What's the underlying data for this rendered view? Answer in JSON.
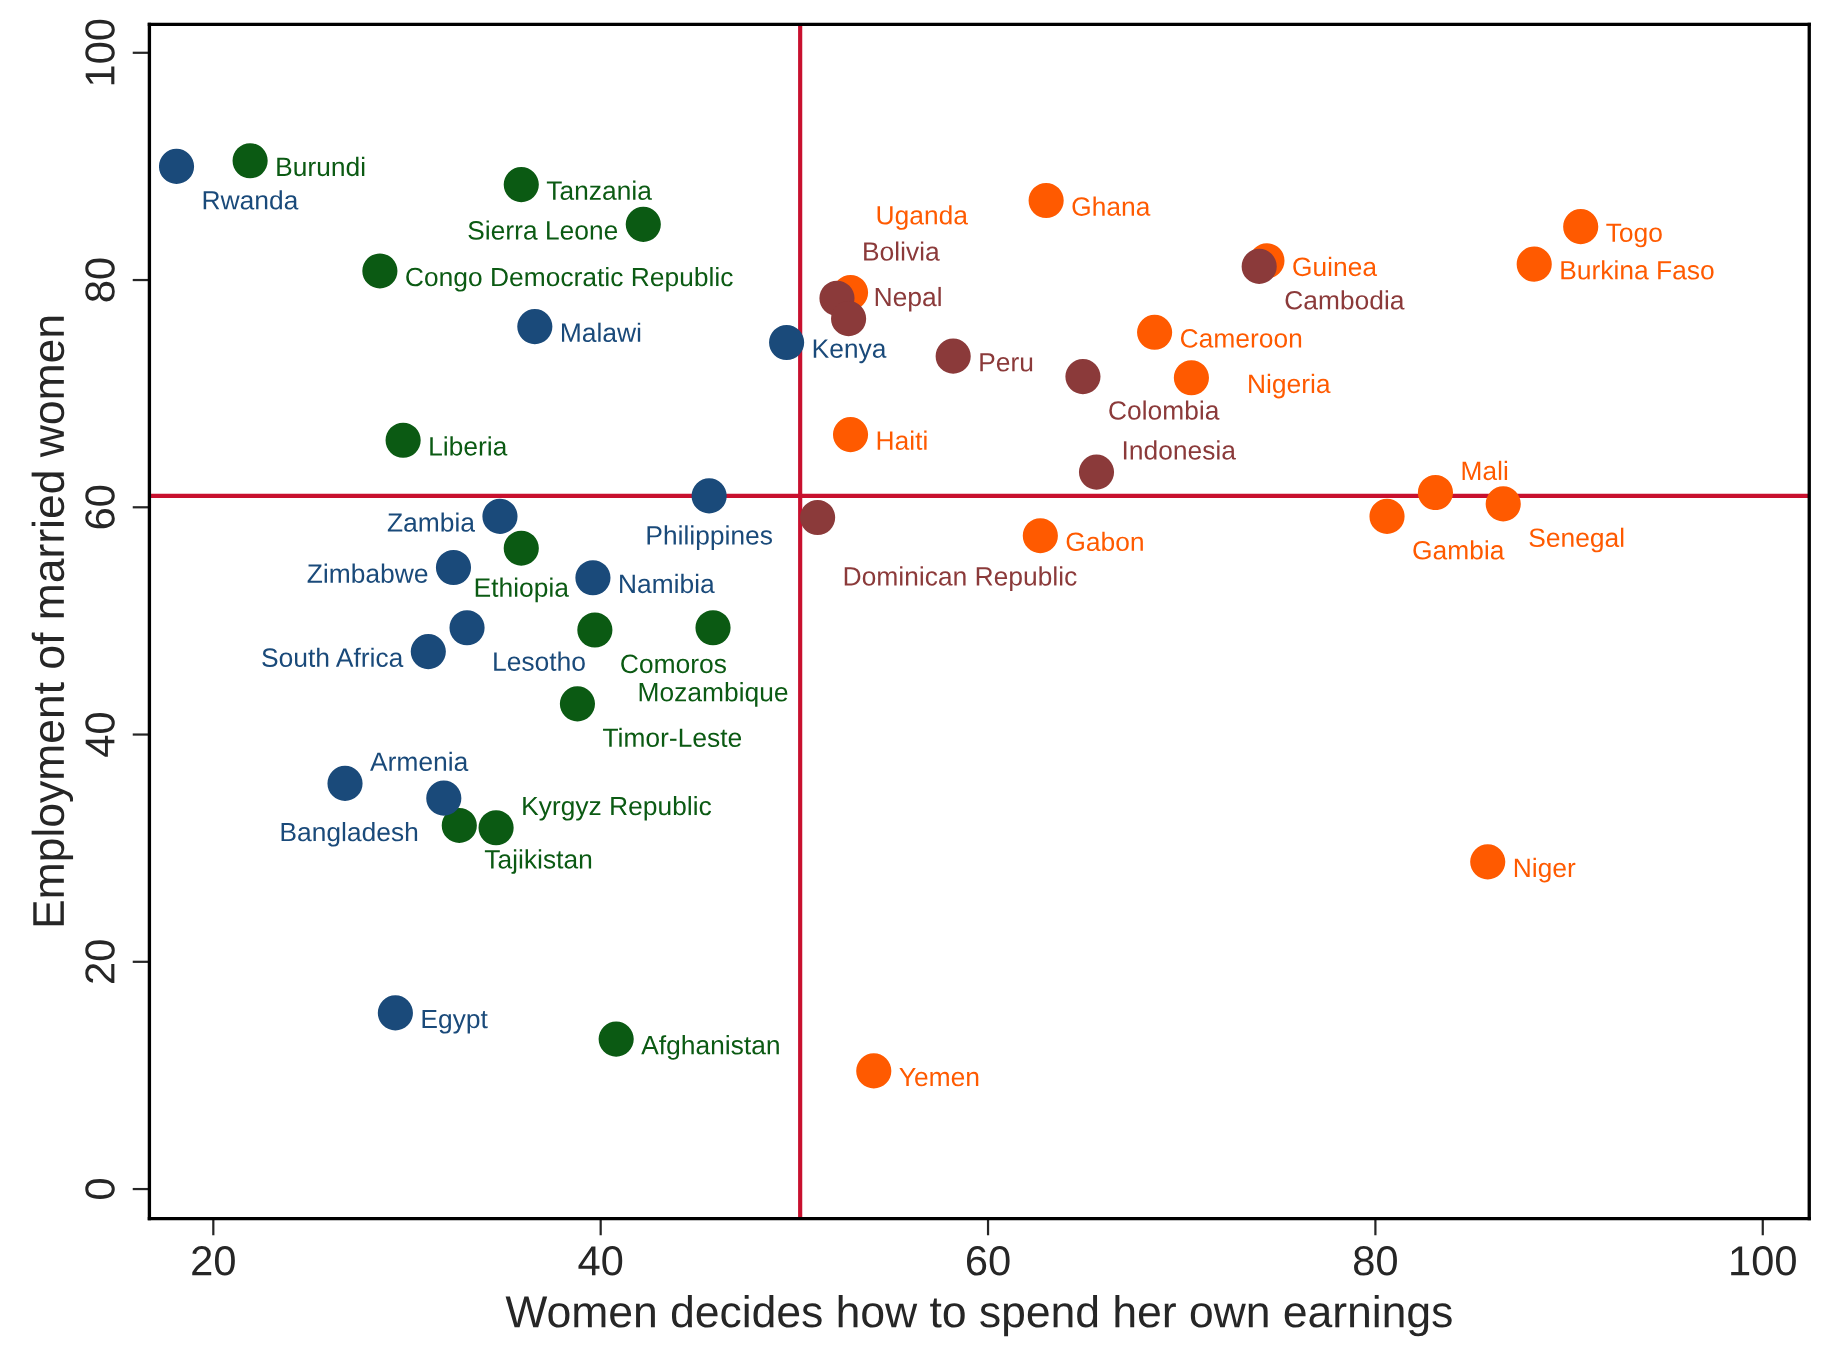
{
  "chart_data": {
    "type": "scatter",
    "xlabel": "Women decides how to spend her own earnings",
    "ylabel": "Employment of married women",
    "xlim": [
      16.7,
      102.4
    ],
    "ylim": [
      -2.6,
      102.5
    ],
    "xticks": [
      20,
      40,
      60,
      80,
      100
    ],
    "yticks": [
      0,
      20,
      40,
      60,
      80,
      100
    ],
    "grid": false,
    "legend": false,
    "marker": "circle",
    "series": [
      {
        "color": "#1a4a7a",
        "x": [
          18.1,
          49.6,
          36.6,
          45.6,
          34.8,
          32.4,
          39.6,
          33.1,
          31.1,
          26.8,
          31.9,
          29.4
        ],
        "values": [
          90.0,
          74.5,
          75.9,
          61.0,
          59.2,
          54.7,
          53.8,
          49.4,
          47.3,
          35.7,
          34.4,
          15.5
        ]
      },
      {
        "color": "#0b5a13",
        "x": [
          21.9,
          35.9,
          42.2,
          28.6,
          29.8,
          35.9,
          39.7,
          45.8,
          38.8,
          32.7,
          34.6,
          40.8
        ],
        "values": [
          90.5,
          88.4,
          84.9,
          80.8,
          65.9,
          56.4,
          49.2,
          49.4,
          42.7,
          32.0,
          31.8,
          13.2
        ]
      },
      {
        "color": "#8b3a3a",
        "x": [
          52.2,
          52.8,
          58.2,
          64.9,
          65.6,
          51.2,
          74.0
        ],
        "values": [
          78.4,
          76.6,
          73.3,
          71.5,
          63.1,
          59.1,
          81.2
        ]
      },
      {
        "color": "#ff5a00",
        "x": [
          52.9,
          63.0,
          74.4,
          90.6,
          88.2,
          68.6,
          70.5,
          52.9,
          62.7,
          80.6,
          83.1,
          86.6,
          85.8,
          54.1
        ],
        "values": [
          78.9,
          87.0,
          81.7,
          84.7,
          81.4,
          75.4,
          71.4,
          66.4,
          57.5,
          59.2,
          61.3,
          60.3,
          28.8,
          10.4
        ]
      }
    ],
    "ref_lines": [
      {
        "axis": "x",
        "value": 50.3,
        "color": "#c8102e"
      },
      {
        "axis": "y",
        "value": 61.0,
        "color": "#c8102e"
      }
    ],
    "annotations": [
      {
        "text": "Rwanda",
        "x": 18.1,
        "y": 90.0
      },
      {
        "text": "Kenya",
        "x": 49.6,
        "y": 74.5
      },
      {
        "text": "Malawi",
        "x": 36.6,
        "y": 75.9
      },
      {
        "text": "Philippines",
        "x": 45.6,
        "y": 61.0
      },
      {
        "text": "Zambia",
        "x": 34.8,
        "y": 59.2
      },
      {
        "text": "Zimbabwe",
        "x": 32.4,
        "y": 54.7
      },
      {
        "text": "Namibia",
        "x": 39.6,
        "y": 53.8
      },
      {
        "text": "Lesotho",
        "x": 33.1,
        "y": 49.4
      },
      {
        "text": "South Africa",
        "x": 31.1,
        "y": 47.3
      },
      {
        "text": "Armenia",
        "x": 26.8,
        "y": 35.7
      },
      {
        "text": "Bangladesh",
        "x": 31.9,
        "y": 34.4
      },
      {
        "text": "Egypt",
        "x": 29.4,
        "y": 15.5
      },
      {
        "text": "Burundi",
        "x": 21.9,
        "y": 90.5
      },
      {
        "text": "Tanzania",
        "x": 35.9,
        "y": 88.4
      },
      {
        "text": "Sierra Leone",
        "x": 42.2,
        "y": 84.9
      },
      {
        "text": "Congo Democratic Republic",
        "x": 28.6,
        "y": 80.8
      },
      {
        "text": "Liberia",
        "x": 29.8,
        "y": 65.9
      },
      {
        "text": "Ethiopia",
        "x": 35.9,
        "y": 56.4
      },
      {
        "text": "Comoros",
        "x": 39.7,
        "y": 49.2
      },
      {
        "text": "Mozambique",
        "x": 45.8,
        "y": 49.4
      },
      {
        "text": "Timor-Leste",
        "x": 38.8,
        "y": 42.7
      },
      {
        "text": "Tajikistan",
        "x": 32.7,
        "y": 32.0
      },
      {
        "text": "Kyrgyz Republic",
        "x": 34.6,
        "y": 31.8
      },
      {
        "text": "Afghanistan",
        "x": 40.8,
        "y": 13.2
      },
      {
        "text": "Bolivia",
        "x": 52.2,
        "y": 78.4
      },
      {
        "text": "Nepal",
        "x": 52.8,
        "y": 76.6
      },
      {
        "text": "Peru",
        "x": 58.2,
        "y": 73.3
      },
      {
        "text": "Colombia",
        "x": 64.9,
        "y": 71.5
      },
      {
        "text": "Indonesia",
        "x": 65.6,
        "y": 63.1
      },
      {
        "text": "Dominican Republic",
        "x": 51.2,
        "y": 59.1
      },
      {
        "text": "Cambodia",
        "x": 74.0,
        "y": 81.2
      },
      {
        "text": "Uganda",
        "x": 52.9,
        "y": 78.9
      },
      {
        "text": "Ghana",
        "x": 63.0,
        "y": 87.0
      },
      {
        "text": "Guinea",
        "x": 74.4,
        "y": 81.7
      },
      {
        "text": "Togo",
        "x": 90.6,
        "y": 84.7
      },
      {
        "text": "Burkina Faso",
        "x": 88.2,
        "y": 81.4
      },
      {
        "text": "Cameroon",
        "x": 68.6,
        "y": 75.4
      },
      {
        "text": "Nigeria",
        "x": 70.5,
        "y": 71.4
      },
      {
        "text": "Haiti",
        "x": 52.9,
        "y": 66.4
      },
      {
        "text": "Gabon",
        "x": 62.7,
        "y": 57.5
      },
      {
        "text": "Gambia",
        "x": 80.6,
        "y": 59.2
      },
      {
        "text": "Mali",
        "x": 83.1,
        "y": 61.3
      },
      {
        "text": "Senegal",
        "x": 86.6,
        "y": 60.3
      },
      {
        "text": "Niger",
        "x": 85.8,
        "y": 28.8
      },
      {
        "text": "Yemen",
        "x": 54.1,
        "y": 10.4
      }
    ]
  }
}
